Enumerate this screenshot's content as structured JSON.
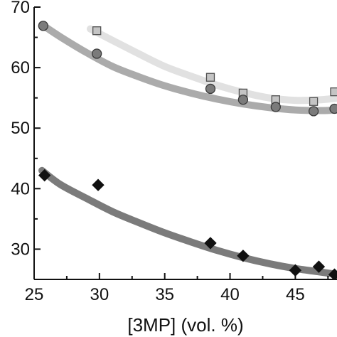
{
  "chart_data": {
    "type": "scatter",
    "title": "",
    "xlabel": "[3MP] (vol. %)",
    "ylabel": "",
    "xlim": [
      25,
      48.3
    ],
    "ylim": [
      25,
      70
    ],
    "x_ticks": [
      25,
      30,
      35,
      40,
      45
    ],
    "y_ticks": [
      30,
      40,
      50,
      60,
      70
    ],
    "grid": false,
    "legend": "none",
    "series": [
      {
        "marker": "square",
        "marker_color": "#c4c4c4",
        "marker_edge": "#505050",
        "points": [
          {
            "x": 29.8,
            "y": 66.1
          },
          {
            "x": 38.5,
            "y": 58.4
          },
          {
            "x": 41.0,
            "y": 55.8
          },
          {
            "x": 43.5,
            "y": 54.7
          },
          {
            "x": 46.4,
            "y": 54.4
          },
          {
            "x": 48.0,
            "y": 56.0
          }
        ],
        "fit": {
          "color": "#e1e1e1",
          "x": [
            29.3,
            31,
            33,
            35,
            37,
            39,
            41,
            43,
            45,
            47,
            48.3
          ],
          "y": [
            66.4,
            64.5,
            62.3,
            60.2,
            58.6,
            57.1,
            55.9,
            55.0,
            54.6,
            54.7,
            55.0
          ]
        }
      },
      {
        "marker": "circle",
        "marker_color": "#7b7b7b",
        "marker_edge": "#3a3a3a",
        "points": [
          {
            "x": 25.7,
            "y": 66.9
          },
          {
            "x": 29.8,
            "y": 62.3
          },
          {
            "x": 38.5,
            "y": 56.5
          },
          {
            "x": 41.0,
            "y": 54.7
          },
          {
            "x": 43.5,
            "y": 53.5
          },
          {
            "x": 46.4,
            "y": 52.8
          },
          {
            "x": 48.0,
            "y": 53.2
          }
        ],
        "fit": {
          "color": "#ababab",
          "x": [
            25.6,
            27,
            29,
            31,
            33,
            35,
            37,
            39,
            41,
            43,
            45,
            47,
            48.3
          ],
          "y": [
            67.1,
            65.1,
            62.5,
            60.2,
            58.5,
            57.0,
            55.8,
            54.8,
            54.0,
            53.4,
            53.0,
            52.9,
            53.0
          ]
        }
      },
      {
        "marker": "diamond",
        "marker_color": "#111111",
        "marker_edge": "#111111",
        "points": [
          {
            "x": 25.8,
            "y": 42.2
          },
          {
            "x": 29.9,
            "y": 40.6
          },
          {
            "x": 38.5,
            "y": 31.0
          },
          {
            "x": 41.0,
            "y": 28.9
          },
          {
            "x": 45.0,
            "y": 26.5
          },
          {
            "x": 46.8,
            "y": 27.1
          },
          {
            "x": 48.0,
            "y": 25.8
          }
        ],
        "fit": {
          "color": "#7b7b7b",
          "x": [
            25.6,
            27,
            29,
            31,
            33,
            35,
            37,
            39,
            41,
            43,
            45,
            47,
            48.3
          ],
          "y": [
            43.0,
            40.7,
            38.4,
            36.2,
            34.4,
            32.7,
            31.2,
            29.8,
            28.6,
            27.6,
            26.8,
            26.2,
            25.8
          ]
        }
      }
    ]
  }
}
